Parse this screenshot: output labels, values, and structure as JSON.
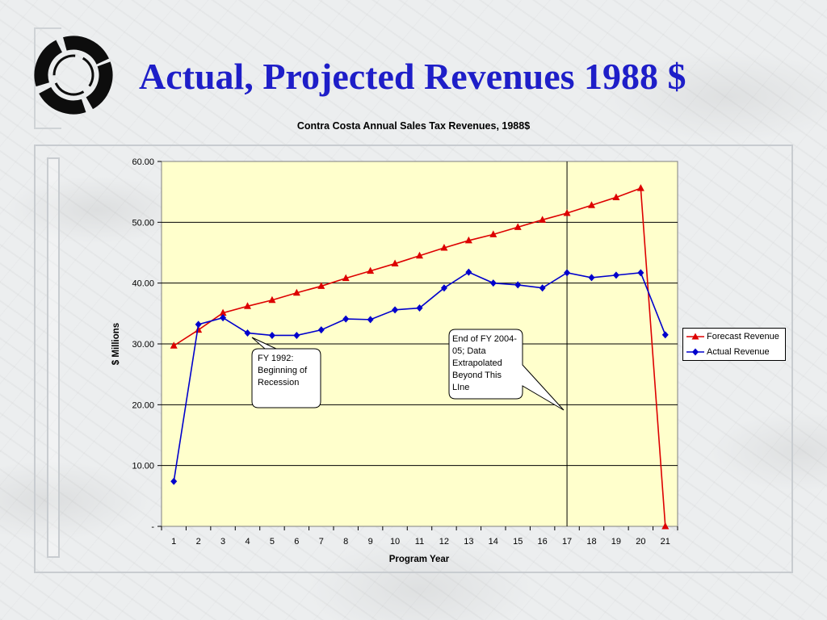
{
  "slide_title": "Actual, Projected Revenues 1988 $",
  "colors": {
    "title": "#1e1ec8",
    "forecast": "#dd0000",
    "actual": "#0000cc",
    "plot_background": "#ffffcc"
  },
  "chart_data": {
    "type": "line",
    "title": "Contra Costa Annual Sales Tax Revenues, 1988$",
    "xlabel": "Program Year",
    "ylabel": "$ Millions",
    "ylim": [
      0,
      60
    ],
    "y_ticks": [
      "-",
      "10.00",
      "20.00",
      "30.00",
      "40.00",
      "50.00",
      "60.00"
    ],
    "grid": "horizontal major gridlines",
    "legend_position": "right",
    "categories": [
      "1",
      "2",
      "3",
      "4",
      "5",
      "6",
      "7",
      "8",
      "9",
      "10",
      "11",
      "12",
      "13",
      "14",
      "15",
      "16",
      "17",
      "18",
      "19",
      "20",
      "21"
    ],
    "series": [
      {
        "name": "Forecast Revenue",
        "marker": "triangle",
        "color": "#dd0000",
        "values": [
          29.7,
          32.3,
          35.1,
          36.2,
          37.2,
          38.4,
          39.5,
          40.8,
          42.0,
          43.2,
          44.5,
          45.8,
          47.0,
          48.0,
          49.2,
          50.4,
          51.5,
          52.8,
          54.1,
          55.6,
          0.0
        ]
      },
      {
        "name": "Actual Revenue",
        "marker": "diamond",
        "color": "#0000cc",
        "values": [
          7.4,
          33.2,
          34.3,
          31.8,
          31.4,
          31.4,
          32.3,
          34.1,
          34.0,
          35.6,
          35.9,
          39.2,
          41.8,
          40.0,
          39.7,
          39.2,
          41.7,
          40.9,
          41.3,
          41.7,
          31.5
        ]
      }
    ],
    "vertical_marker_at_category": "17",
    "annotations": [
      {
        "id": "recession",
        "text_lines": [
          "FY 1992:",
          "Beginning of",
          "Recession"
        ]
      },
      {
        "id": "extrapolation",
        "text_lines": [
          "End of FY 2004-",
          "05; Data",
          "Extrapolated",
          "Beyond This",
          "LIne"
        ]
      }
    ]
  }
}
